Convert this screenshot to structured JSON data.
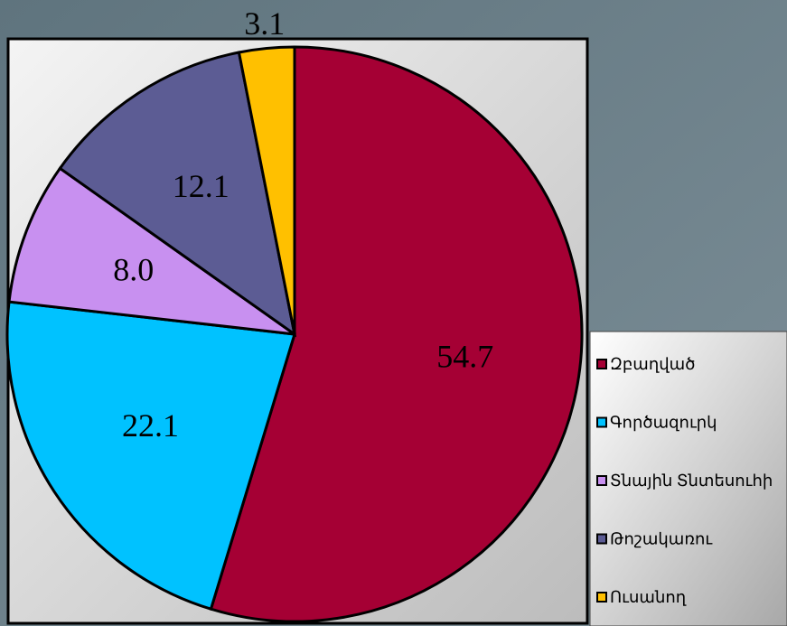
{
  "chart_data": {
    "type": "pie",
    "categories": [
      "Զբաղված",
      "Գործազուրկ",
      "Տնային Տնտեսուհի",
      "Թոշակառու",
      "Ուսանող"
    ],
    "values": [
      54.7,
      22.1,
      8.0,
      12.1,
      3.1
    ],
    "value_labels": [
      "54.7",
      "22.1",
      "8.0",
      "12.1",
      "3.1"
    ],
    "colors": [
      "#a50034",
      "#00c2ff",
      "#c890f0",
      "#5c5c94",
      "#ffc000"
    ],
    "legend": "right"
  }
}
